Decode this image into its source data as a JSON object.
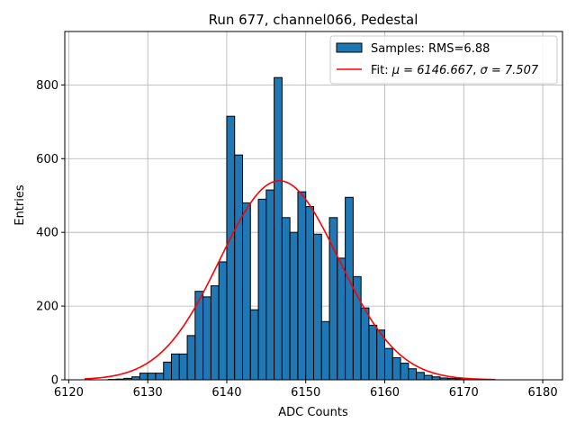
{
  "chart_data": {
    "type": "bar",
    "title": "Run 677, channel066, Pedestal",
    "xlabel": "ADC Counts",
    "ylabel": "Entries",
    "xlim": [
      6119.5,
      6182.5
    ],
    "ylim": [
      0,
      945
    ],
    "xticks": [
      6120,
      6130,
      6140,
      6150,
      6160,
      6170,
      6180
    ],
    "yticks": [
      0,
      200,
      400,
      600,
      800
    ],
    "grid": true,
    "legend_position": "top-right",
    "histogram": {
      "name": "Samples: RMS=6.88",
      "color": "#1f77b4",
      "edgecolor": "#000000",
      "bin_width": 1,
      "bin_starts": [
        6122,
        6123,
        6124,
        6125,
        6126,
        6127,
        6128,
        6129,
        6130,
        6131,
        6132,
        6133,
        6134,
        6135,
        6136,
        6137,
        6138,
        6139,
        6140,
        6141,
        6142,
        6143,
        6144,
        6145,
        6146,
        6147,
        6148,
        6149,
        6150,
        6151,
        6152,
        6153,
        6154,
        6155,
        6156,
        6157,
        6158,
        6159,
        6160,
        6161,
        6162,
        6163,
        6164,
        6165,
        6166,
        6167,
        6168,
        6169,
        6170,
        6171,
        6172,
        6173
      ],
      "counts": [
        0,
        0,
        0,
        1,
        2,
        4,
        8,
        18,
        18,
        18,
        48,
        70,
        70,
        120,
        240,
        225,
        255,
        320,
        715,
        610,
        480,
        190,
        490,
        515,
        820,
        440,
        400,
        510,
        470,
        395,
        158,
        440,
        330,
        495,
        280,
        195,
        148,
        135,
        85,
        60,
        45,
        30,
        20,
        12,
        8,
        5,
        4,
        3,
        1,
        1,
        0,
        0
      ]
    },
    "fit": {
      "name": "Fit: μ = 6146.667, σ = 7.507",
      "label_prefix": "Fit: ",
      "mu_text": "μ = 6146.667",
      "sigma_text": "σ = 7.507",
      "color": "#ff0000",
      "mu": 6146.667,
      "sigma": 7.507,
      "amplitude": 540,
      "x_range": [
        6122,
        6174
      ]
    }
  }
}
